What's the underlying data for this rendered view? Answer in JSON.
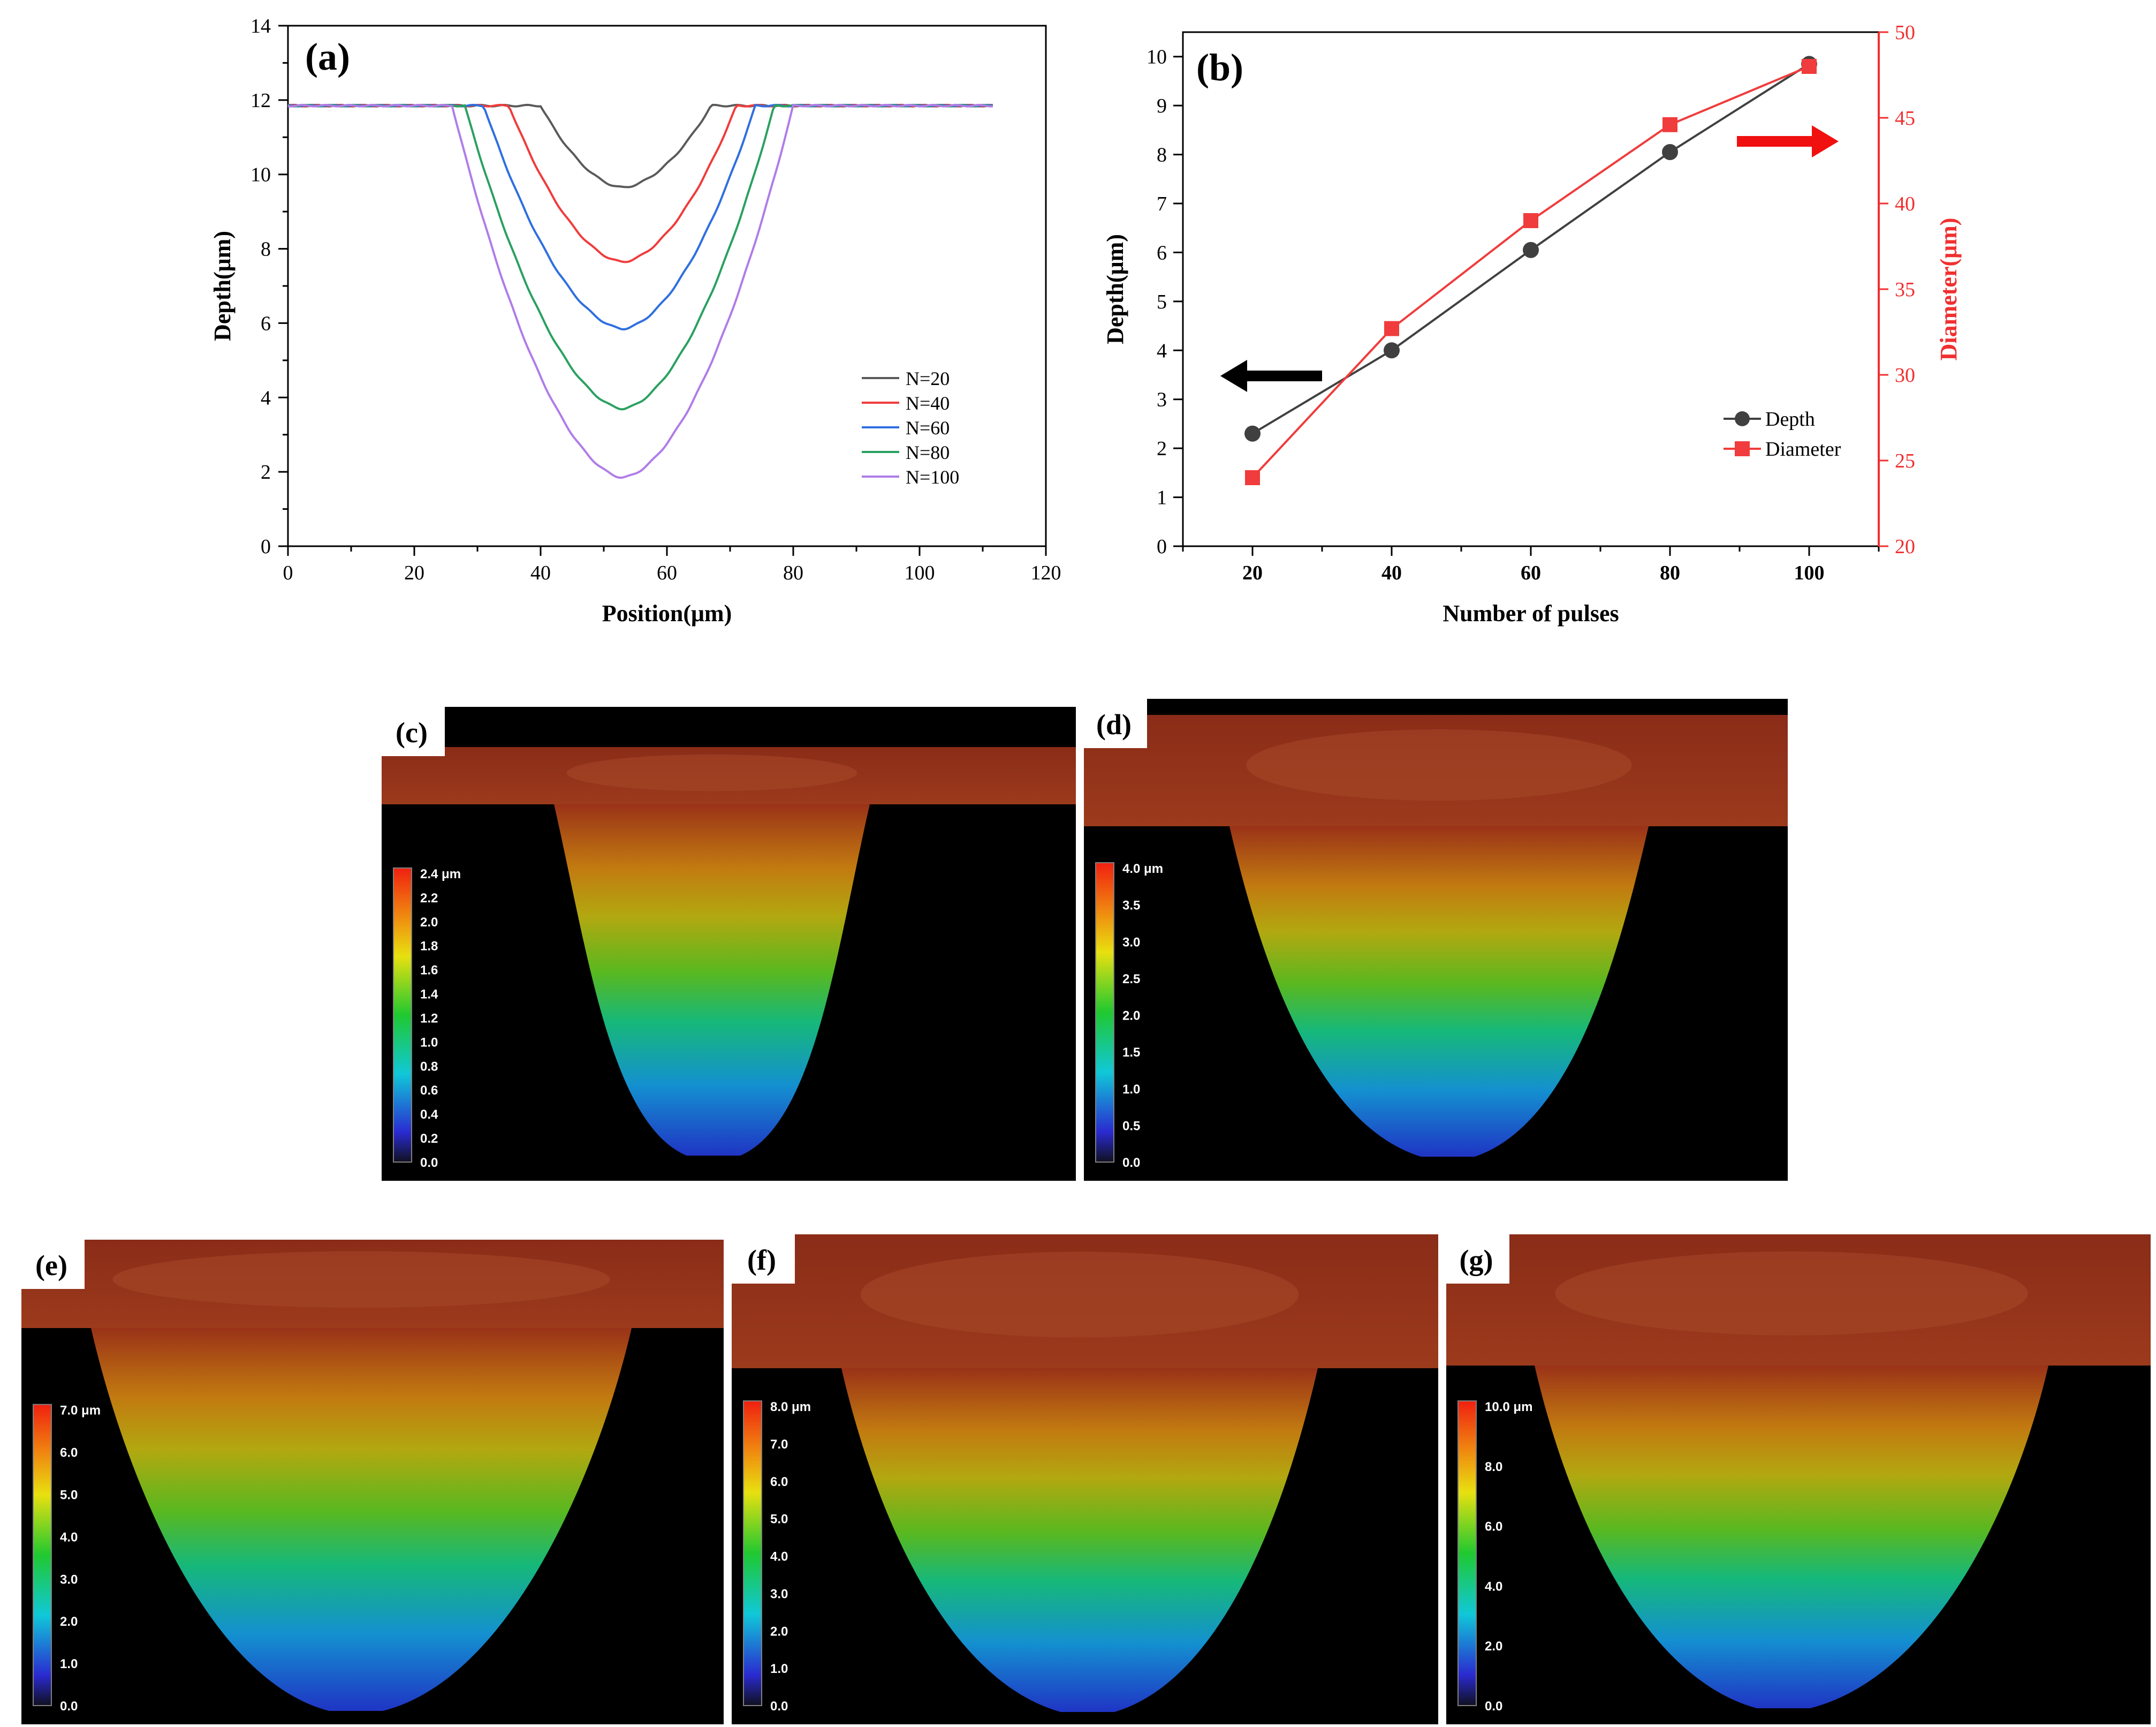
{
  "chart_data": [
    {
      "type": "line",
      "panel_label": "(a)",
      "xlabel": "Position(μm)",
      "ylabel": "Depth(μm)",
      "xlim": [
        0,
        120
      ],
      "ylim": [
        0,
        14
      ],
      "xticks": [
        0,
        20,
        40,
        60,
        80,
        100,
        120
      ],
      "yticks": [
        0,
        2,
        4,
        6,
        8,
        10,
        12,
        14
      ],
      "legend_position": "bottom-right",
      "series": [
        {
          "name": "N=20",
          "color": "#5a5a5a",
          "baseline": 11.85,
          "min_depth": 9.65,
          "start": 0,
          "end": 112,
          "left_edge": 40,
          "right_edge": 67,
          "center": 53
        },
        {
          "name": "N=40",
          "color": "#f03c3c",
          "baseline": 11.85,
          "min_depth": 7.65,
          "start": 0,
          "end": 112,
          "left_edge": 35,
          "right_edge": 71,
          "center": 53
        },
        {
          "name": "N=60",
          "color": "#2f6fe0",
          "baseline": 11.85,
          "min_depth": 5.85,
          "start": 0,
          "end": 112,
          "left_edge": 31,
          "right_edge": 74,
          "center": 53
        },
        {
          "name": "N=80",
          "color": "#2aa060",
          "baseline": 11.85,
          "min_depth": 3.7,
          "start": 0,
          "end": 112,
          "left_edge": 28,
          "right_edge": 77,
          "center": 53
        },
        {
          "name": "N=100",
          "color": "#b07ce8",
          "baseline": 11.85,
          "min_depth": 1.85,
          "start": 0,
          "end": 112,
          "left_edge": 26,
          "right_edge": 80,
          "center": 53
        }
      ]
    },
    {
      "type": "line",
      "panel_label": "(b)",
      "xlabel": "Number of pulses",
      "ylabel": "Depth(μm)",
      "ylabel_right": "Diameter(μm)",
      "x": [
        20,
        40,
        60,
        80,
        100
      ],
      "xlim": [
        10,
        110
      ],
      "ylim": [
        0,
        10.5
      ],
      "ylim_right": [
        20,
        50
      ],
      "yticks": [
        0,
        1,
        2,
        3,
        4,
        5,
        6,
        7,
        8,
        9,
        10
      ],
      "yticks_right": [
        20,
        25,
        30,
        35,
        40,
        45,
        50
      ],
      "legend_position": "bottom-right",
      "series": [
        {
          "name": "Depth",
          "axis": "left",
          "color": "#404040",
          "marker": "circle",
          "values": [
            2.3,
            4.0,
            6.05,
            8.05,
            9.85
          ]
        },
        {
          "name": "Diameter",
          "axis": "right",
          "color": "#f03c3c",
          "marker": "square",
          "values": [
            24,
            32.7,
            39,
            44.6,
            48
          ]
        }
      ]
    },
    {
      "type": "heatmap",
      "panel_label": "(c)",
      "colorbar_unit": "μm",
      "colorbar_ticks": [
        "2.4 μm",
        "2.2",
        "2.0",
        "1.8",
        "1.6",
        "1.4",
        "1.2",
        "1.0",
        "0.8",
        "0.6",
        "0.4",
        "0.2",
        "0.0"
      ]
    },
    {
      "type": "heatmap",
      "panel_label": "(d)",
      "colorbar_unit": "μm",
      "colorbar_ticks": [
        "4.0 μm",
        "3.5",
        "3.0",
        "2.5",
        "2.0",
        "1.5",
        "1.0",
        "0.5",
        "0.0"
      ]
    },
    {
      "type": "heatmap",
      "panel_label": "(e)",
      "colorbar_unit": "μm",
      "colorbar_ticks": [
        "7.0 μm",
        "6.0",
        "5.0",
        "4.0",
        "3.0",
        "2.0",
        "1.0",
        "0.0"
      ]
    },
    {
      "type": "heatmap",
      "panel_label": "(f)",
      "colorbar_unit": "μm",
      "colorbar_ticks": [
        "8.0 μm",
        "7.0",
        "6.0",
        "5.0",
        "4.0",
        "3.0",
        "2.0",
        "1.0",
        "0.0"
      ]
    },
    {
      "type": "heatmap",
      "panel_label": "(g)",
      "colorbar_unit": "μm",
      "colorbar_ticks": [
        "10.0 μm",
        "8.0",
        "6.0",
        "4.0",
        "2.0",
        "0.0"
      ]
    }
  ]
}
